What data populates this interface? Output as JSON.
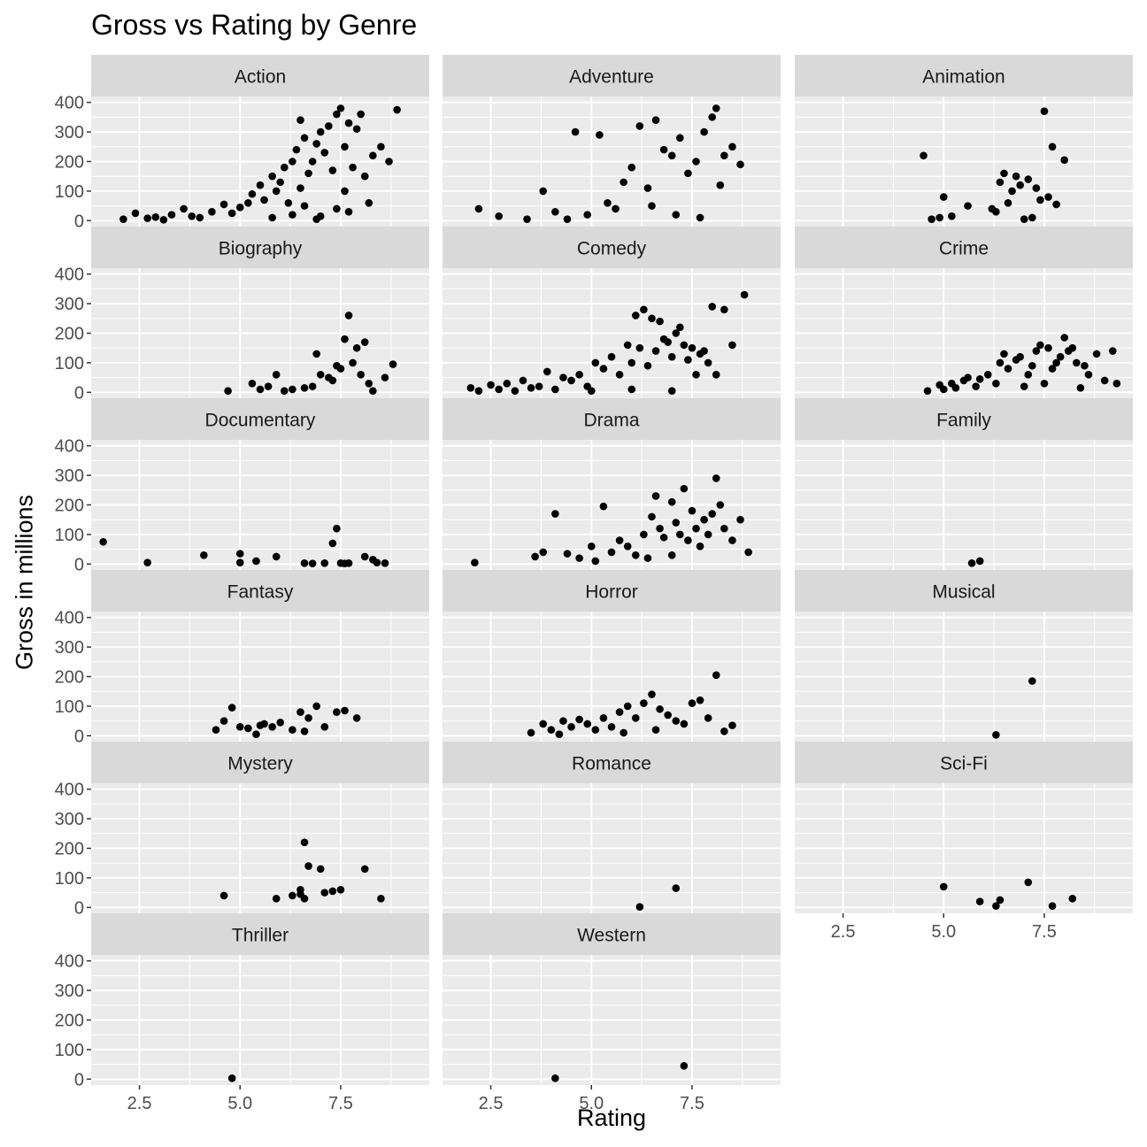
{
  "chart_data": {
    "type": "scatter",
    "title": "Gross vs Rating by Genre",
    "xlabel": "Rating",
    "ylabel": "Gross in millions",
    "xlim": [
      1.3,
      9.7
    ],
    "ylim": [
      -20,
      420
    ],
    "x_ticks": [
      2.5,
      5.0,
      7.5
    ],
    "x_tick_labels": [
      "2.5",
      "5.0",
      "7.5"
    ],
    "y_ticks": [
      0,
      100,
      200,
      300,
      400
    ],
    "y_tick_labels": [
      "0",
      "100",
      "200",
      "300",
      "400"
    ],
    "grid": true,
    "layout": "facet_wrap",
    "columns": 3,
    "point_color": "#000000",
    "panel_background": "#EBEBEB",
    "strip_background": "#D9D9D9",
    "grid_color": "#FFFFFF",
    "facets": [
      {
        "name": "Action",
        "x": [
          2.1,
          2.4,
          2.7,
          2.9,
          3.1,
          3.3,
          3.6,
          3.8,
          4.0,
          4.3,
          4.6,
          4.8,
          5.0,
          5.2,
          5.3,
          5.5,
          5.6,
          5.8,
          5.9,
          6.0,
          6.1,
          6.2,
          6.3,
          6.4,
          6.5,
          6.5,
          6.6,
          6.7,
          6.8,
          6.9,
          7.0,
          7.1,
          7.2,
          7.3,
          7.4,
          7.5,
          7.6,
          7.7,
          7.8,
          7.9,
          8.0,
          8.1,
          8.3,
          8.5,
          8.7,
          8.9,
          6.3,
          6.6,
          7.0,
          7.4,
          7.7,
          8.2,
          5.8,
          6.9,
          7.6
        ],
        "y": [
          5,
          25,
          8,
          12,
          3,
          20,
          40,
          15,
          10,
          30,
          55,
          25,
          45,
          60,
          90,
          120,
          70,
          150,
          100,
          130,
          180,
          60,
          200,
          240,
          110,
          340,
          280,
          160,
          200,
          260,
          300,
          230,
          320,
          170,
          360,
          380,
          250,
          330,
          180,
          310,
          360,
          150,
          220,
          250,
          200,
          375,
          20,
          50,
          15,
          40,
          30,
          60,
          10,
          5,
          100
        ]
      },
      {
        "name": "Adventure",
        "x": [
          2.2,
          2.7,
          3.4,
          3.8,
          4.1,
          4.4,
          4.6,
          4.9,
          5.2,
          5.4,
          5.6,
          5.8,
          6.0,
          6.2,
          6.4,
          6.6,
          6.8,
          7.0,
          7.2,
          7.4,
          7.6,
          7.8,
          8.0,
          8.1,
          8.3,
          8.5,
          8.7,
          6.5,
          7.1,
          7.7,
          8.2
        ],
        "y": [
          40,
          15,
          5,
          100,
          30,
          5,
          300,
          20,
          290,
          60,
          40,
          130,
          180,
          320,
          110,
          340,
          240,
          220,
          280,
          160,
          200,
          300,
          350,
          380,
          220,
          250,
          190,
          50,
          20,
          10,
          120
        ]
      },
      {
        "name": "Animation",
        "x": [
          4.5,
          4.7,
          4.9,
          5.0,
          5.2,
          5.6,
          6.2,
          6.3,
          6.4,
          6.5,
          6.6,
          6.7,
          6.8,
          6.9,
          7.0,
          7.1,
          7.2,
          7.3,
          7.4,
          7.5,
          7.6,
          7.7,
          7.8,
          8.0
        ],
        "y": [
          220,
          5,
          10,
          80,
          15,
          50,
          40,
          30,
          130,
          160,
          60,
          100,
          150,
          120,
          5,
          140,
          10,
          110,
          70,
          370,
          80,
          250,
          55,
          205
        ]
      },
      {
        "name": "Biography",
        "x": [
          4.7,
          5.3,
          5.5,
          5.7,
          5.9,
          6.1,
          6.3,
          6.6,
          6.8,
          7.0,
          7.2,
          7.3,
          7.5,
          7.6,
          7.7,
          7.8,
          7.9,
          8.0,
          8.1,
          8.2,
          8.3,
          8.6,
          8.8,
          6.9,
          7.4
        ],
        "y": [
          5,
          30,
          10,
          20,
          60,
          5,
          10,
          15,
          20,
          60,
          50,
          40,
          80,
          180,
          260,
          100,
          150,
          60,
          170,
          30,
          5,
          50,
          95,
          130,
          90
        ]
      },
      {
        "name": "Comedy",
        "x": [
          2.0,
          2.2,
          2.5,
          2.7,
          2.9,
          3.1,
          3.3,
          3.5,
          3.7,
          3.9,
          4.1,
          4.3,
          4.5,
          4.7,
          4.9,
          5.1,
          5.3,
          5.5,
          5.7,
          5.9,
          6.0,
          6.1,
          6.2,
          6.3,
          6.4,
          6.5,
          6.6,
          6.7,
          6.8,
          6.9,
          7.0,
          7.1,
          7.2,
          7.3,
          7.4,
          7.5,
          7.6,
          7.7,
          7.8,
          7.9,
          8.0,
          8.1,
          8.3,
          8.5,
          8.8,
          5.0,
          6.0,
          7.0
        ],
        "y": [
          15,
          5,
          25,
          10,
          30,
          5,
          40,
          15,
          20,
          70,
          10,
          50,
          40,
          60,
          20,
          100,
          80,
          120,
          60,
          160,
          100,
          260,
          150,
          280,
          90,
          250,
          140,
          240,
          180,
          170,
          120,
          200,
          220,
          160,
          110,
          150,
          60,
          130,
          140,
          100,
          290,
          60,
          280,
          160,
          330,
          5,
          10,
          5
        ]
      },
      {
        "name": "Crime",
        "x": [
          4.6,
          4.9,
          5.0,
          5.2,
          5.3,
          5.5,
          5.6,
          5.8,
          5.9,
          6.1,
          6.3,
          6.4,
          6.5,
          6.6,
          6.8,
          6.9,
          7.1,
          7.2,
          7.3,
          7.4,
          7.5,
          7.6,
          7.7,
          7.8,
          7.9,
          8.0,
          8.1,
          8.2,
          8.3,
          8.5,
          8.6,
          8.8,
          9.0,
          9.2,
          9.3,
          7.0,
          8.4
        ],
        "y": [
          5,
          25,
          10,
          30,
          15,
          40,
          50,
          20,
          45,
          60,
          30,
          100,
          130,
          80,
          110,
          120,
          60,
          90,
          140,
          160,
          30,
          150,
          80,
          100,
          120,
          185,
          140,
          150,
          100,
          90,
          60,
          130,
          40,
          140,
          30,
          20,
          15
        ]
      },
      {
        "name": "Documentary",
        "x": [
          1.6,
          2.7,
          4.1,
          5.0,
          5.0,
          5.4,
          5.9,
          6.6,
          6.8,
          7.1,
          7.3,
          7.4,
          7.5,
          7.6,
          7.7,
          8.1,
          8.3,
          8.4,
          8.6
        ],
        "y": [
          75,
          5,
          30,
          35,
          5,
          10,
          25,
          3,
          2,
          3,
          70,
          120,
          3,
          2,
          3,
          25,
          15,
          5,
          3
        ]
      },
      {
        "name": "Drama",
        "x": [
          2.1,
          3.6,
          3.8,
          4.1,
          4.4,
          4.7,
          5.0,
          5.3,
          5.5,
          5.7,
          5.9,
          6.1,
          6.3,
          6.5,
          6.6,
          6.7,
          6.8,
          7.0,
          7.1,
          7.2,
          7.3,
          7.4,
          7.5,
          7.6,
          7.7,
          7.8,
          7.9,
          8.0,
          8.1,
          8.2,
          8.3,
          8.5,
          8.7,
          8.9,
          5.1,
          6.4,
          7.0
        ],
        "y": [
          5,
          25,
          40,
          170,
          35,
          20,
          60,
          195,
          40,
          80,
          60,
          30,
          100,
          160,
          230,
          120,
          90,
          210,
          140,
          100,
          255,
          80,
          180,
          120,
          60,
          150,
          100,
          170,
          290,
          200,
          120,
          80,
          150,
          40,
          10,
          20,
          30
        ]
      },
      {
        "name": "Family",
        "x": [
          5.7,
          5.9
        ],
        "y": [
          3,
          10
        ]
      },
      {
        "name": "Fantasy",
        "x": [
          4.4,
          4.6,
          4.8,
          5.0,
          5.2,
          5.4,
          5.6,
          5.8,
          6.0,
          6.3,
          6.5,
          6.7,
          6.9,
          7.1,
          7.4,
          7.6,
          7.9,
          5.5,
          6.6
        ],
        "y": [
          20,
          50,
          95,
          30,
          25,
          5,
          40,
          30,
          45,
          20,
          80,
          60,
          100,
          30,
          80,
          85,
          60,
          35,
          15
        ]
      },
      {
        "name": "Horror",
        "x": [
          3.5,
          3.8,
          4.0,
          4.3,
          4.5,
          4.7,
          4.9,
          5.1,
          5.3,
          5.5,
          5.7,
          5.9,
          6.1,
          6.3,
          6.5,
          6.7,
          6.9,
          7.1,
          7.3,
          7.5,
          7.7,
          7.9,
          8.1,
          8.3,
          8.5,
          4.2,
          5.8,
          6.6
        ],
        "y": [
          10,
          40,
          20,
          50,
          30,
          55,
          40,
          20,
          60,
          30,
          80,
          100,
          60,
          110,
          140,
          90,
          70,
          50,
          40,
          110,
          120,
          60,
          205,
          15,
          35,
          5,
          10,
          20
        ]
      },
      {
        "name": "Musical",
        "x": [
          6.3,
          7.2
        ],
        "y": [
          3,
          185
        ]
      },
      {
        "name": "Mystery",
        "x": [
          4.6,
          5.9,
          6.3,
          6.5,
          6.6,
          6.6,
          6.7,
          7.0,
          7.1,
          7.3,
          7.5,
          8.1,
          8.5,
          6.5
        ],
        "y": [
          40,
          30,
          40,
          60,
          220,
          30,
          140,
          130,
          50,
          55,
          60,
          130,
          30,
          45
        ]
      },
      {
        "name": "Romance",
        "x": [
          6.2,
          7.1
        ],
        "y": [
          2,
          65
        ]
      },
      {
        "name": "Sci-Fi",
        "x": [
          5.0,
          5.9,
          6.3,
          6.4,
          7.1,
          7.7,
          8.2
        ],
        "y": [
          70,
          20,
          5,
          25,
          85,
          5,
          30
        ]
      },
      {
        "name": "Thriller",
        "x": [
          4.8
        ],
        "y": [
          3
        ]
      },
      {
        "name": "Western",
        "x": [
          4.1,
          7.3
        ],
        "y": [
          3,
          45
        ]
      }
    ]
  }
}
